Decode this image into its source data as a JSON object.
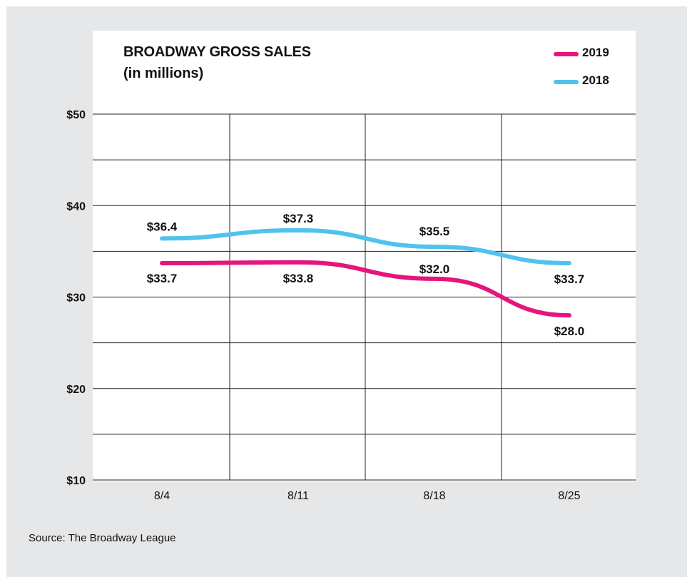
{
  "chart_data": {
    "type": "line",
    "title": "BROADWAY GROSS SALES",
    "subtitle": "(in millions)",
    "categories": [
      "8/4",
      "8/11",
      "8/18",
      "8/25"
    ],
    "ylim": [
      10,
      50
    ],
    "yticks": [
      10,
      20,
      30,
      40,
      50
    ],
    "ytick_labels": [
      "$10",
      "$20",
      "$30",
      "$40",
      "$50"
    ],
    "grid": true,
    "legend_position": "top-right",
    "series": [
      {
        "name": "2019",
        "color": "#e5157e",
        "values": [
          33.7,
          33.8,
          32.0,
          28.0
        ],
        "labels": [
          "$33.7",
          "$33.8",
          "$32.0",
          "$28.0"
        ]
      },
      {
        "name": "2018",
        "color": "#4fc3ee",
        "values": [
          36.4,
          37.3,
          35.5,
          33.7
        ],
        "labels": [
          "$36.4",
          "$37.3",
          "$35.5",
          "$33.7"
        ]
      }
    ],
    "source": "Source: The Broadway League"
  }
}
